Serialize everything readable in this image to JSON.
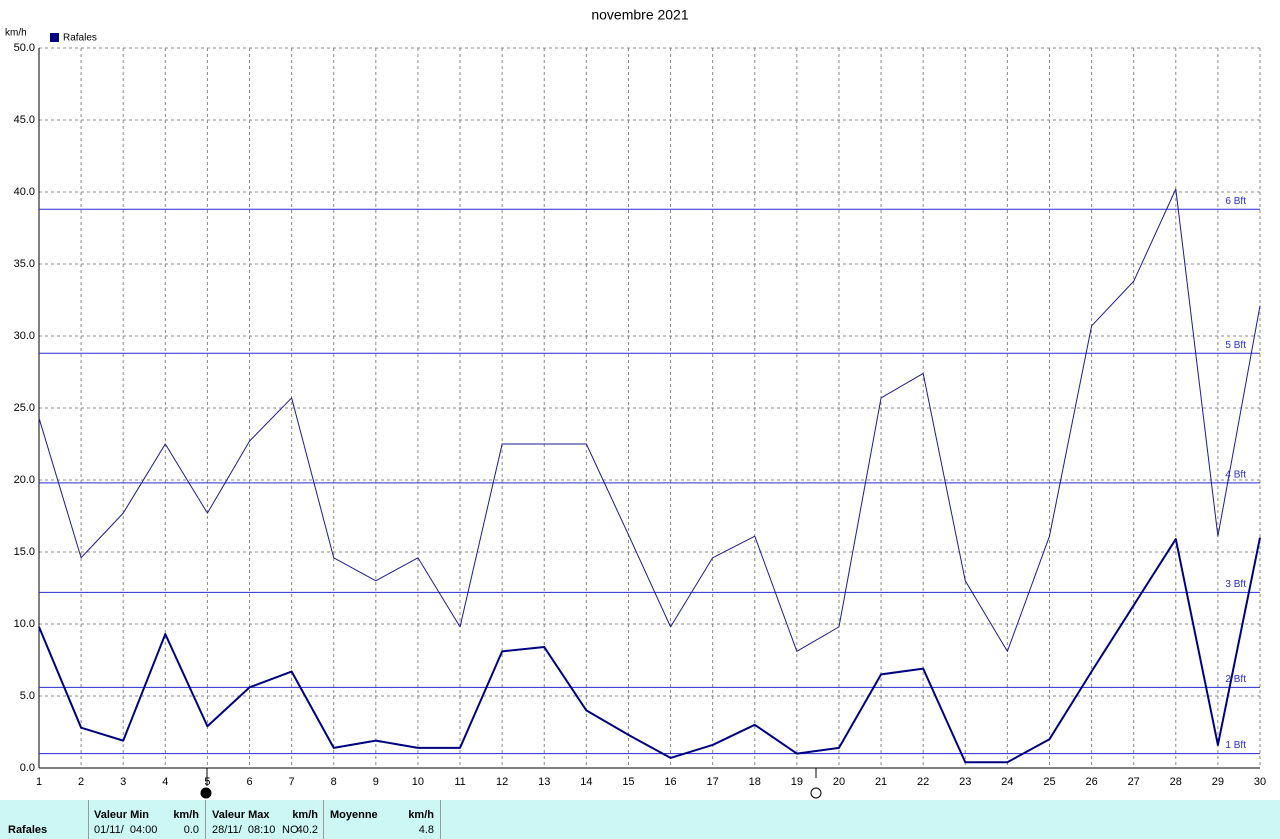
{
  "chart_data": {
    "type": "line",
    "title": "novembre 2021",
    "y_unit": "km/h",
    "x": [
      1,
      2,
      3,
      4,
      5,
      6,
      7,
      8,
      9,
      10,
      11,
      12,
      13,
      14,
      15,
      16,
      17,
      18,
      19,
      20,
      21,
      22,
      23,
      24,
      25,
      26,
      27,
      28,
      29,
      30
    ],
    "xlim": [
      1,
      30
    ],
    "xticks": [
      1,
      2,
      3,
      4,
      5,
      6,
      7,
      8,
      9,
      10,
      11,
      12,
      13,
      14,
      15,
      16,
      17,
      18,
      19,
      20,
      21,
      22,
      23,
      24,
      25,
      26,
      27,
      28,
      29,
      30
    ],
    "ylim": [
      0,
      50
    ],
    "yticks": [
      {
        "value": 0,
        "label": "0.0"
      },
      {
        "value": 5,
        "label": "5.0"
      },
      {
        "value": 10,
        "label": "10.0"
      },
      {
        "value": 15,
        "label": "15.0"
      },
      {
        "value": 20,
        "label": "20.0"
      },
      {
        "value": 25,
        "label": "25.0"
      },
      {
        "value": 30,
        "label": "30.0"
      },
      {
        "value": 35,
        "label": "35.0"
      },
      {
        "value": 40,
        "label": "40.0"
      },
      {
        "value": 45,
        "label": "45.0"
      },
      {
        "value": 50,
        "label": "50.0"
      }
    ],
    "grid": true,
    "series": [
      {
        "name": "Rafales",
        "color": "#1c1c8c",
        "width": 1,
        "values": [
          24.3,
          14.6,
          17.7,
          22.5,
          17.7,
          22.7,
          25.7,
          14.6,
          13.0,
          14.6,
          9.8,
          22.5,
          22.5,
          22.5,
          16.2,
          9.8,
          14.6,
          16.1,
          8.1,
          9.8,
          25.7,
          27.4,
          13.0,
          8.1,
          16.1,
          30.7,
          33.8,
          40.2,
          16.1,
          32.1
        ]
      },
      {
        "color": "#000080",
        "width": 2,
        "values": [
          9.8,
          2.8,
          1.9,
          9.3,
          2.9,
          5.6,
          6.7,
          1.4,
          1.9,
          1.4,
          1.4,
          8.1,
          8.4,
          4.0,
          2.3,
          0.7,
          1.6,
          3.0,
          1.0,
          1.4,
          6.5,
          6.9,
          0.4,
          0.4,
          2.0,
          6.7,
          11.3,
          15.9,
          1.6,
          16.0
        ]
      }
    ],
    "bft_color": "#2a2ad0",
    "bft_lines": [
      {
        "value": 38.8,
        "label": "6 Bft"
      },
      {
        "value": 28.8,
        "label": "5 Bft"
      },
      {
        "value": 19.8,
        "label": "4 Bft"
      },
      {
        "value": 12.2,
        "label": "3 Bft"
      },
      {
        "value": 5.6,
        "label": "2 Bft"
      },
      {
        "value": 1.0,
        "label": "1 Bft"
      }
    ]
  },
  "table": {
    "columns": [
      "Valeur Min",
      "km/h",
      "Valeur Max",
      "km/h",
      "Moyenne",
      "km/h"
    ],
    "rows": [
      [
        "Rafales",
        "01/11/  04:00",
        "0.0",
        "28/11/  08:10",
        "NO",
        "40.2",
        "4.8"
      ]
    ]
  }
}
